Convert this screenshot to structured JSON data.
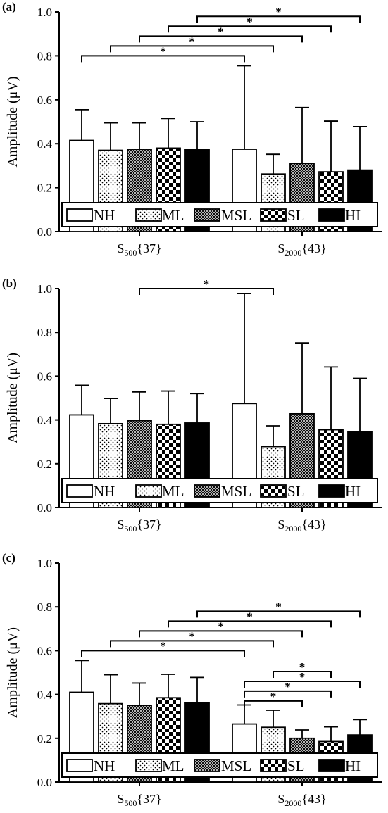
{
  "figure": {
    "panels": [
      "(a)",
      "(b)",
      "(c)"
    ],
    "ylabel_main": "Amplitude (",
    "ylabel_unit": "μV",
    "ylabel_close": ")",
    "legend": [
      "NH",
      "ML",
      "MSL",
      "SL",
      "HI"
    ],
    "group_labels": [
      {
        "base": "S",
        "sub": "500",
        "suffix": "{37}"
      },
      {
        "base": "S",
        "sub": "2000",
        "suffix": "{43}"
      }
    ],
    "sig_marker": "*"
  },
  "chart_data": [
    {
      "type": "bar",
      "panel": "(a)",
      "categories": [
        "S500{37}",
        "S2000{43}"
      ],
      "ylabel": "Amplitude (μV)",
      "ylim": [
        0,
        1.0
      ],
      "yticks": [
        "0.0",
        "0.2",
        "0.4",
        "0.6",
        "0.8",
        "1.0"
      ],
      "series": [
        {
          "name": "NH",
          "values": [
            0.415,
            0.375
          ],
          "errors": [
            0.555,
            0.755
          ]
        },
        {
          "name": "ML",
          "values": [
            0.37,
            0.262
          ],
          "errors": [
            0.495,
            0.352
          ]
        },
        {
          "name": "MSL",
          "values": [
            0.375,
            0.31
          ],
          "errors": [
            0.495,
            0.565
          ]
        },
        {
          "name": "SL",
          "values": [
            0.38,
            0.272
          ],
          "errors": [
            0.515,
            0.503
          ]
        },
        {
          "name": "HI",
          "values": [
            0.375,
            0.28
          ],
          "errors": [
            0.5,
            0.478
          ]
        }
      ],
      "significance": [
        {
          "from": "S500{37}.NH",
          "to": "S2000{43}.NH",
          "level": 0.8,
          "label": "*"
        },
        {
          "from": "S500{37}.ML",
          "to": "S2000{43}.ML",
          "level": 0.845,
          "label": "*"
        },
        {
          "from": "S500{37}.MSL",
          "to": "S2000{43}.MSL",
          "level": 0.89,
          "label": "*"
        },
        {
          "from": "S500{37}.SL",
          "to": "S2000{43}.SL",
          "level": 0.935,
          "label": "*"
        },
        {
          "from": "S500{37}.HI",
          "to": "S2000{43}.HI",
          "level": 0.98,
          "label": "*"
        }
      ]
    },
    {
      "type": "bar",
      "panel": "(b)",
      "categories": [
        "S500{37}",
        "S2000{43}"
      ],
      "ylabel": "Amplitude (μV)",
      "ylim": [
        0,
        1.0
      ],
      "yticks": [
        "0.0",
        "0.2",
        "0.4",
        "0.6",
        "0.8",
        "1.0"
      ],
      "series": [
        {
          "name": "NH",
          "values": [
            0.423,
            0.475
          ],
          "errors": [
            0.558,
            0.978
          ]
        },
        {
          "name": "ML",
          "values": [
            0.383,
            0.278
          ],
          "errors": [
            0.498,
            0.373
          ]
        },
        {
          "name": "MSL",
          "values": [
            0.397,
            0.428
          ],
          "errors": [
            0.528,
            0.752
          ]
        },
        {
          "name": "SL",
          "values": [
            0.38,
            0.355
          ],
          "errors": [
            0.532,
            0.642
          ]
        },
        {
          "name": "HI",
          "values": [
            0.386,
            0.345
          ],
          "errors": [
            0.52,
            0.59
          ]
        }
      ],
      "significance": [
        {
          "from": "S500{37}.MSL",
          "to": "S2000{43}.ML",
          "level": 1.0,
          "label": "*"
        }
      ]
    },
    {
      "type": "bar",
      "panel": "(c)",
      "categories": [
        "S500{37}",
        "S2000{43}"
      ],
      "ylabel": "Amplitude (μV)",
      "ylim": [
        0,
        1.0
      ],
      "yticks": [
        "0.0",
        "0.2",
        "0.4",
        "0.6",
        "0.8",
        "1.0"
      ],
      "series": [
        {
          "name": "NH",
          "values": [
            0.41,
            0.265
          ],
          "errors": [
            0.555,
            0.352
          ]
        },
        {
          "name": "ML",
          "values": [
            0.358,
            0.25
          ],
          "errors": [
            0.49,
            0.328
          ]
        },
        {
          "name": "MSL",
          "values": [
            0.35,
            0.2
          ],
          "errors": [
            0.452,
            0.238
          ]
        },
        {
          "name": "SL",
          "values": [
            0.385,
            0.185
          ],
          "errors": [
            0.492,
            0.252
          ]
        },
        {
          "name": "HI",
          "values": [
            0.362,
            0.215
          ],
          "errors": [
            0.478,
            0.285
          ]
        }
      ],
      "significance": [
        {
          "from": "S500{37}.NH",
          "to": "S2000{43}.NH",
          "level": 0.6,
          "label": "*"
        },
        {
          "from": "S500{37}.ML",
          "to": "S2000{43}.ML",
          "level": 0.645,
          "label": "*"
        },
        {
          "from": "S500{37}.MSL",
          "to": "S2000{43}.MSL",
          "level": 0.69,
          "label": "*"
        },
        {
          "from": "S500{37}.SL",
          "to": "S2000{43}.SL",
          "level": 0.735,
          "label": "*"
        },
        {
          "from": "S500{37}.HI",
          "to": "S2000{43}.HI",
          "level": 0.78,
          "label": "*"
        },
        {
          "from": "S2000{43}.NH",
          "to": "S2000{43}.MSL",
          "level": 0.37,
          "label": "*"
        },
        {
          "from": "S2000{43}.NH",
          "to": "S2000{43}.SL",
          "level": 0.415,
          "label": "*"
        },
        {
          "from": "S2000{43}.NH",
          "to": "S2000{43}.HI",
          "level": 0.46,
          "label": "*"
        },
        {
          "from": "S2000{43}.ML",
          "to": "S2000{43}.SL",
          "level": 0.505,
          "label": "*"
        }
      ]
    }
  ]
}
